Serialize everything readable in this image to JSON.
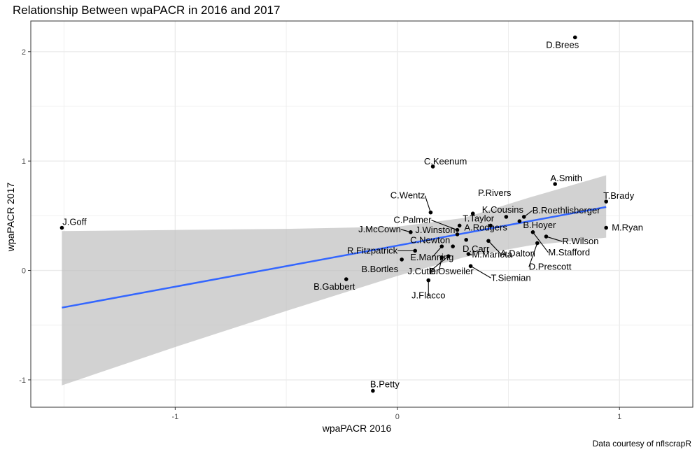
{
  "chart_data": {
    "type": "scatter",
    "title": "Relationship Between wpaPACR in 2016 and 2017",
    "xlabel": "wpaPACR 2016",
    "ylabel": "wpaPACR 2017",
    "caption": "Data courtesy of nflscrapR",
    "xlim": [
      -1.65,
      1.33
    ],
    "ylim": [
      -1.25,
      2.28
    ],
    "x_ticks": [
      -1,
      0,
      1
    ],
    "y_ticks": [
      -1,
      0,
      1,
      2
    ],
    "grid": true,
    "points": [
      {
        "label": "D.Brees",
        "x": 0.8,
        "y": 2.13
      },
      {
        "label": "C.Keenum",
        "x": 0.16,
        "y": 0.95
      },
      {
        "label": "A.Smith",
        "x": 0.71,
        "y": 0.79
      },
      {
        "label": "T.Brady",
        "x": 0.94,
        "y": 0.63
      },
      {
        "label": "J.Goff",
        "x": -1.51,
        "y": 0.39
      },
      {
        "label": "P.Rivers",
        "x": 0.34,
        "y": 0.52
      },
      {
        "label": "K.Cousins",
        "x": 0.49,
        "y": 0.49
      },
      {
        "label": "B.Roethlisberger",
        "x": 0.57,
        "y": 0.49
      },
      {
        "label": "C.Wentz",
        "x": 0.15,
        "y": 0.53
      },
      {
        "label": "T.Taylor",
        "x": 0.28,
        "y": 0.41
      },
      {
        "label": "C.Palmer",
        "x": 0.27,
        "y": 0.37
      },
      {
        "label": "M.Ryan",
        "x": 0.94,
        "y": 0.39
      },
      {
        "label": "B.Hoyer",
        "x": 0.55,
        "y": 0.45
      },
      {
        "label": "J.McCown",
        "x": 0.06,
        "y": 0.35
      },
      {
        "label": "J.Winston",
        "x": 0.27,
        "y": 0.33
      },
      {
        "label": "A.Rodgers",
        "x": 0.42,
        "y": 0.41
      },
      {
        "label": "R.Wilson",
        "x": 0.67,
        "y": 0.31
      },
      {
        "label": "C.Newton",
        "x": 0.31,
        "y": 0.28
      },
      {
        "label": "A.Dalton",
        "x": 0.41,
        "y": 0.27
      },
      {
        "label": "M.Stafford",
        "x": 0.61,
        "y": 0.35
      },
      {
        "label": "D.Carr",
        "x": 0.25,
        "y": 0.22
      },
      {
        "label": "D.Prescott",
        "x": 0.63,
        "y": 0.25
      },
      {
        "label": "R.Fitzpatrick",
        "x": 0.08,
        "y": 0.18
      },
      {
        "label": "E.Manning",
        "x": 0.2,
        "y": 0.22
      },
      {
        "label": "M.Mariota",
        "x": 0.32,
        "y": 0.15
      },
      {
        "label": "B.Bortles",
        "x": 0.02,
        "y": 0.1
      },
      {
        "label": "J.Cutler",
        "x": 0.2,
        "y": 0.12
      },
      {
        "label": "B.Osweiler",
        "x": 0.23,
        "y": 0.13
      },
      {
        "label": "T.Siemian",
        "x": 0.33,
        "y": 0.04
      },
      {
        "label": "J.Flacco",
        "x": 0.14,
        "y": -0.09
      },
      {
        "label": "B.Gabbert",
        "x": -0.23,
        "y": -0.08
      },
      {
        "label": "B.Petty",
        "x": -0.11,
        "y": -1.1
      }
    ],
    "trend": {
      "x": [
        -1.51,
        0.94
      ],
      "y": [
        -0.34,
        0.58
      ]
    },
    "band": {
      "x": [
        -1.51,
        -1.0,
        -0.5,
        0.0,
        0.3,
        0.6,
        0.94
      ],
      "lower": [
        -1.05,
        -0.7,
        -0.37,
        -0.05,
        0.12,
        0.23,
        0.3
      ],
      "upper": [
        0.36,
        0.37,
        0.38,
        0.4,
        0.48,
        0.67,
        0.87
      ]
    },
    "colors": {
      "trend": "#3366ff",
      "band": "#bfbfbf",
      "points": "#000000",
      "grid": "#ebebeb",
      "panel_border": "#333333"
    }
  }
}
